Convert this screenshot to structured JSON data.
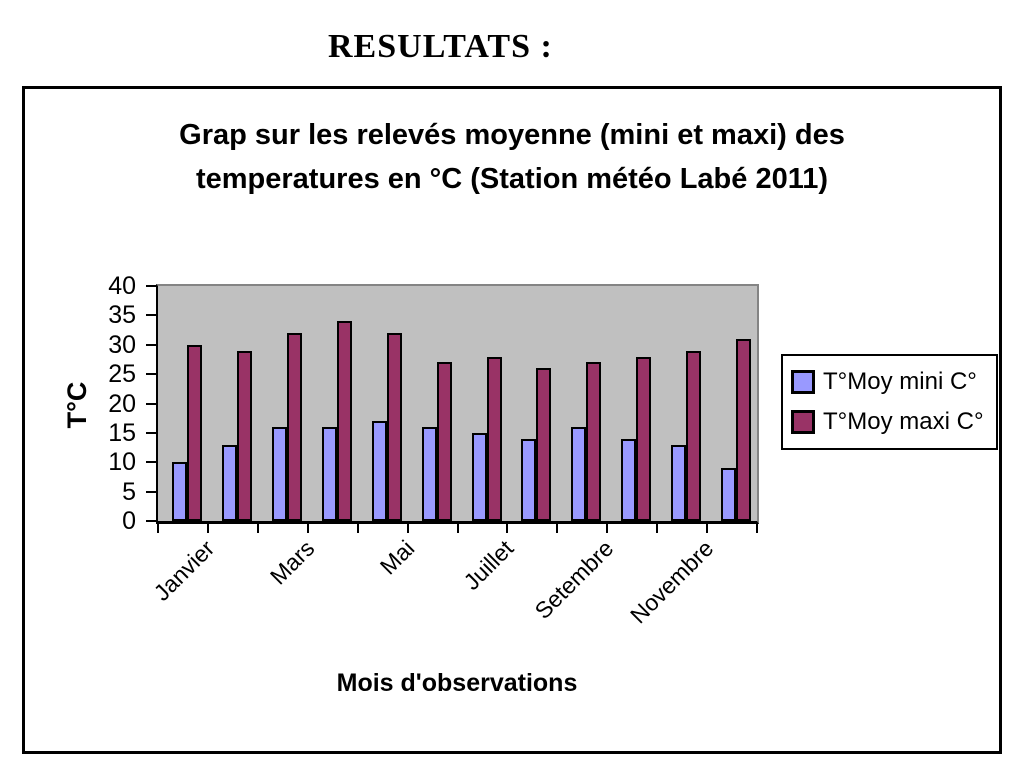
{
  "page": {
    "heading": "RESULTATS :"
  },
  "chart_data": {
    "type": "bar",
    "title_line1": "Grap sur les relevés moyenne (mini et maxi) des",
    "title_line2": "temperatures en °C (Station météo Labé 2011)",
    "xlabel": "Mois d'observations",
    "ylabel": "T°C",
    "ylim": [
      0,
      40
    ],
    "yticks": [
      0,
      5,
      10,
      15,
      20,
      25,
      30,
      35,
      40
    ],
    "grid": false,
    "legend_position": "right",
    "categories": [
      "Janvier",
      "",
      "Mars",
      "",
      "Mai",
      "",
      "Juillet",
      "",
      "Setembre",
      "",
      "Novembre",
      ""
    ],
    "series": [
      {
        "name": "T°Moy mini C°",
        "color": "#9999FF",
        "values": [
          10,
          13,
          16,
          16,
          17,
          16,
          15,
          14,
          16,
          14,
          13,
          9
        ]
      },
      {
        "name": "T°Moy maxi C°",
        "color": "#993366",
        "values": [
          30,
          29,
          32,
          34,
          32,
          27,
          28,
          26,
          27,
          28,
          29,
          31
        ]
      }
    ],
    "colors": {
      "plot_background": "#C0C0C0",
      "plot_border": "#848484",
      "axis": "#000000",
      "series_mini": "#9999FF",
      "series_maxi": "#993366"
    }
  }
}
